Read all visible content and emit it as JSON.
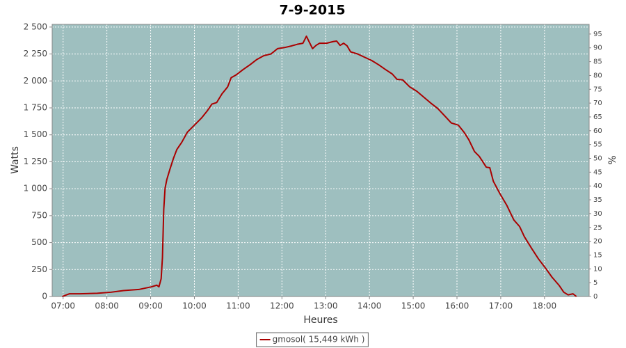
{
  "chart_data": {
    "type": "line",
    "title": "7-9-2015",
    "x_label": "Heures",
    "y_label": "Watts",
    "y2_label": "%",
    "x": [
      6.98,
      7.14,
      7.38,
      7.78,
      8.1,
      8.38,
      8.73,
      9.02,
      9.14,
      9.19,
      9.24,
      9.27,
      9.3,
      9.33,
      9.37,
      9.44,
      9.52,
      9.6,
      9.71,
      9.84,
      10.0,
      10.16,
      10.29,
      10.4,
      10.51,
      10.63,
      10.76,
      10.84,
      10.95,
      11.11,
      11.27,
      11.43,
      11.59,
      11.75,
      11.9,
      12.06,
      12.22,
      12.35,
      12.48,
      12.56,
      12.62,
      12.7,
      12.78,
      12.86,
      13.02,
      13.17,
      13.25,
      13.33,
      13.41,
      13.49,
      13.57,
      13.73,
      13.89,
      14.05,
      14.21,
      14.37,
      14.52,
      14.63,
      14.76,
      14.92,
      15.08,
      15.24,
      15.4,
      15.56,
      15.71,
      15.87,
      16.03,
      16.16,
      16.27,
      16.4,
      16.51,
      16.67,
      16.75,
      16.83,
      16.98,
      17.14,
      17.3,
      17.43,
      17.54,
      17.7,
      17.86,
      18.02,
      18.17,
      18.33,
      18.44,
      18.54,
      18.65,
      18.73
    ],
    "series": [
      {
        "name": "gmosol( 15,449 kWh )",
        "color": "#aa0000",
        "values": [
          0,
          25,
          25,
          30,
          40,
          55,
          65,
          90,
          105,
          90,
          165,
          360,
          810,
          1005,
          1085,
          1180,
          1280,
          1365,
          1430,
          1525,
          1590,
          1655,
          1720,
          1785,
          1800,
          1880,
          1945,
          2030,
          2055,
          2105,
          2150,
          2200,
          2235,
          2250,
          2300,
          2310,
          2325,
          2340,
          2350,
          2415,
          2365,
          2300,
          2330,
          2350,
          2350,
          2365,
          2370,
          2330,
          2350,
          2325,
          2270,
          2250,
          2220,
          2190,
          2150,
          2105,
          2065,
          2015,
          2010,
          1945,
          1905,
          1850,
          1795,
          1745,
          1680,
          1610,
          1590,
          1525,
          1455,
          1345,
          1300,
          1200,
          1195,
          1070,
          955,
          845,
          710,
          650,
          555,
          450,
          350,
          265,
          180,
          105,
          40,
          15,
          25,
          0
        ]
      }
    ],
    "xlim": [
      6.75,
      19.02
    ],
    "xticks": [
      {
        "value": 7,
        "label": "07:00"
      },
      {
        "value": 8,
        "label": "08:00"
      },
      {
        "value": 9,
        "label": "09:00"
      },
      {
        "value": 10,
        "label": "10:00"
      },
      {
        "value": 11,
        "label": "11:00"
      },
      {
        "value": 12,
        "label": "12:00"
      },
      {
        "value": 13,
        "label": "13:00"
      },
      {
        "value": 14,
        "label": "14:00"
      },
      {
        "value": 15,
        "label": "15:00"
      },
      {
        "value": 16,
        "label": "16:00"
      },
      {
        "value": 17,
        "label": "17:00"
      },
      {
        "value": 18,
        "label": "18:00"
      }
    ],
    "ylim": [
      0,
      2525
    ],
    "yticks": [
      0,
      250,
      500,
      750,
      {
        "value": 1000,
        "label": "1 000"
      },
      {
        "value": 1250,
        "label": "1 250"
      },
      {
        "value": 1500,
        "label": "1 500"
      },
      {
        "value": 1750,
        "label": "1 750"
      },
      {
        "value": 2000,
        "label": "2 000"
      },
      {
        "value": 2250,
        "label": "2 250"
      },
      {
        "value": 2500,
        "label": "2 500"
      }
    ],
    "y2lim": [
      0,
      98.5
    ],
    "y2ticks": [
      0,
      5,
      10,
      15,
      20,
      25,
      30,
      35,
      40,
      45,
      50,
      55,
      60,
      65,
      70,
      75,
      80,
      85,
      90,
      95
    ],
    "grid": true,
    "plot_background": "#9ebfbf",
    "legend": "bottom"
  }
}
